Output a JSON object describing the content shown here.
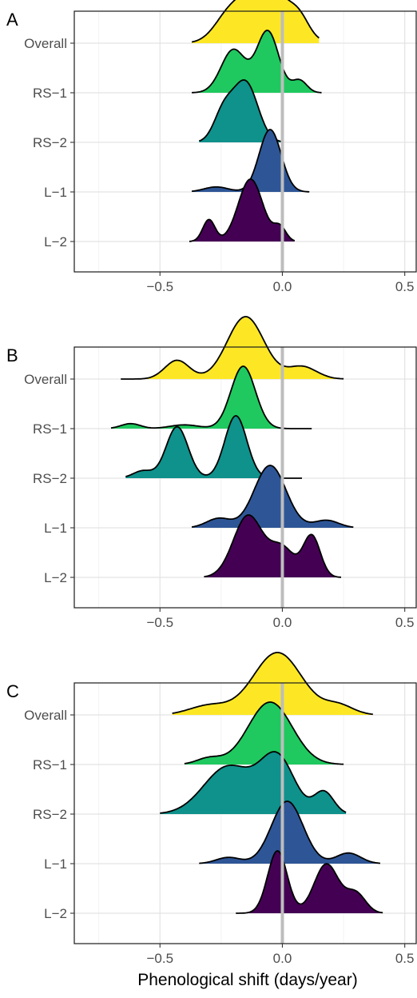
{
  "chart_data": {
    "type": "ridgeline",
    "xlabel": "Phenological shift (days/year)",
    "xlim": [
      -0.85,
      0.55
    ],
    "xticks": [
      -0.5,
      0.0,
      0.5
    ],
    "xtick_labels": [
      "−0.5",
      "0.0",
      "0.5"
    ],
    "reference_line_x": 0,
    "grid": true,
    "categories": [
      "Overall",
      "RS−1",
      "RS−2",
      "L−1",
      "L−2"
    ],
    "colors": [
      "#FDE725",
      "#1FC95F",
      "#0F918C",
      "#2E5696",
      "#440154"
    ],
    "panels": [
      {
        "label": "A",
        "series": [
          {
            "name": "Overall",
            "range": [
              -0.37,
              0.15
            ],
            "peaks": [
              [
                -0.07,
                0.09,
                1.0
              ],
              [
                -0.22,
                0.06,
                0.35
              ],
              [
                0.07,
                0.04,
                0.25
              ]
            ]
          },
          {
            "name": "RS−1",
            "range": [
              -0.37,
              0.16
            ],
            "peaks": [
              [
                -0.2,
                0.05,
                0.7
              ],
              [
                -0.06,
                0.045,
                1.0
              ],
              [
                0.07,
                0.03,
                0.2
              ]
            ]
          },
          {
            "name": "RS−2",
            "range": [
              -0.34,
              0.0
            ],
            "peaks": [
              [
                -0.15,
                0.05,
                1.0
              ],
              [
                -0.24,
                0.04,
                0.5
              ]
            ]
          },
          {
            "name": "L−1",
            "range": [
              -0.37,
              0.11
            ],
            "peaks": [
              [
                -0.05,
                0.045,
                1.0
              ],
              [
                -0.27,
                0.05,
                0.08
              ]
            ]
          },
          {
            "name": "L−2",
            "range": [
              -0.38,
              0.05
            ],
            "peaks": [
              [
                -0.13,
                0.05,
                1.0
              ],
              [
                -0.3,
                0.025,
                0.35
              ],
              [
                -0.01,
                0.025,
                0.22
              ]
            ]
          }
        ]
      },
      {
        "label": "B",
        "series": [
          {
            "name": "Overall",
            "range": [
              -0.66,
              0.25
            ],
            "peaks": [
              [
                -0.15,
                0.075,
                1.0
              ],
              [
                -0.43,
                0.05,
                0.3
              ],
              [
                0.08,
                0.06,
                0.2
              ]
            ]
          },
          {
            "name": "RS−1",
            "range": [
              -0.7,
              0.12
            ],
            "peaks": [
              [
                -0.16,
                0.05,
                1.0
              ],
              [
                -0.62,
                0.04,
                0.08
              ],
              [
                -0.4,
                0.06,
                0.06
              ]
            ]
          },
          {
            "name": "RS−2",
            "range": [
              -0.64,
              0.08
            ],
            "peaks": [
              [
                -0.43,
                0.045,
                0.7
              ],
              [
                -0.19,
                0.045,
                0.85
              ],
              [
                -0.57,
                0.04,
                0.1
              ]
            ]
          },
          {
            "name": "L−1",
            "range": [
              -0.37,
              0.29
            ],
            "peaks": [
              [
                -0.05,
                0.065,
                1.0
              ],
              [
                -0.26,
                0.05,
                0.15
              ],
              [
                0.18,
                0.05,
                0.12
              ]
            ]
          },
          {
            "name": "L−2",
            "range": [
              -0.32,
              0.24
            ],
            "peaks": [
              [
                -0.14,
                0.06,
                0.75
              ],
              [
                0.12,
                0.035,
                0.5
              ],
              [
                0.0,
                0.05,
                0.35
              ]
            ]
          }
        ]
      },
      {
        "label": "C",
        "series": [
          {
            "name": "Overall",
            "range": [
              -0.45,
              0.37
            ],
            "peaks": [
              [
                -0.02,
                0.1,
                1.0
              ],
              [
                -0.3,
                0.08,
                0.15
              ],
              [
                0.23,
                0.06,
                0.15
              ]
            ]
          },
          {
            "name": "RS−1",
            "range": [
              -0.4,
              0.25
            ],
            "peaks": [
              [
                -0.05,
                0.09,
                1.0
              ],
              [
                -0.3,
                0.05,
                0.1
              ]
            ]
          },
          {
            "name": "RS−2",
            "range": [
              -0.5,
              0.26
            ],
            "peaks": [
              [
                -0.22,
                0.1,
                0.65
              ],
              [
                -0.02,
                0.07,
                0.75
              ],
              [
                0.17,
                0.04,
                0.3
              ]
            ]
          },
          {
            "name": "L−1",
            "range": [
              -0.34,
              0.4
            ],
            "peaks": [
              [
                0.02,
                0.065,
                1.0
              ],
              [
                -0.22,
                0.05,
                0.1
              ],
              [
                0.27,
                0.05,
                0.17
              ]
            ]
          },
          {
            "name": "L−2",
            "range": [
              -0.19,
              0.41
            ],
            "peaks": [
              [
                -0.02,
                0.04,
                0.95
              ],
              [
                0.18,
                0.05,
                0.75
              ],
              [
                0.3,
                0.04,
                0.3
              ]
            ]
          }
        ]
      }
    ]
  }
}
